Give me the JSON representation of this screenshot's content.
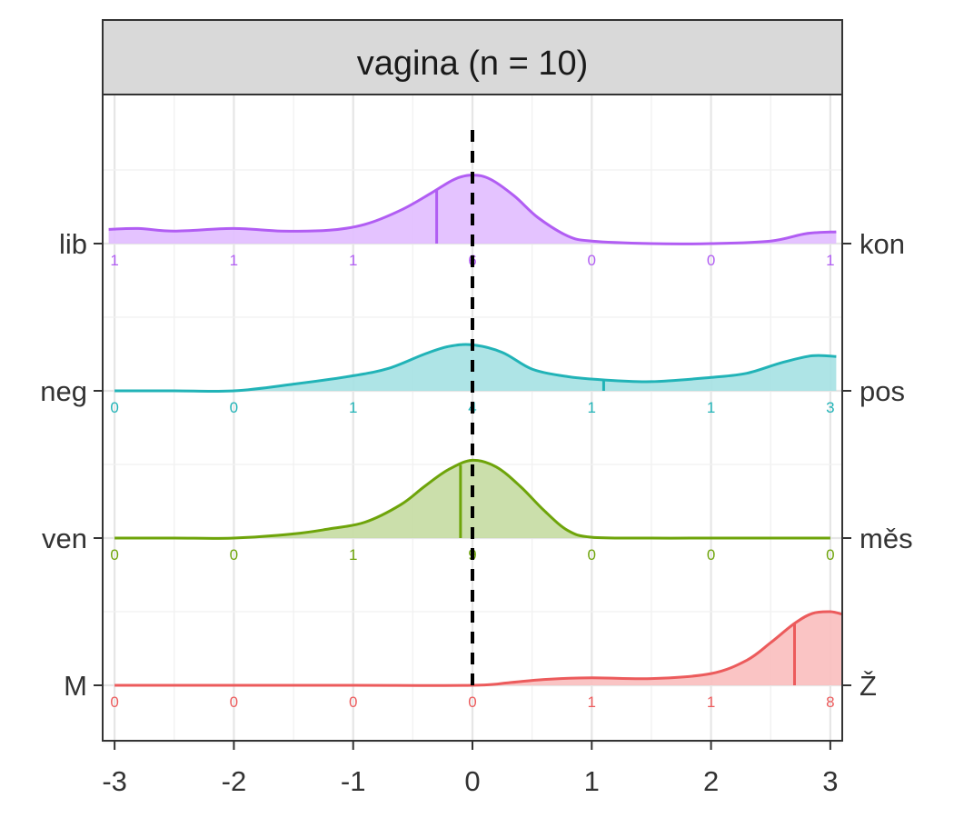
{
  "chart_data": {
    "type": "ridgeline",
    "title": "vagina (n = 10)",
    "x_ticks": [
      "-3",
      "-2",
      "-1",
      "0",
      "1",
      "2",
      "3"
    ],
    "xlim": [
      -3.1,
      3.1
    ],
    "reference_line_x": 0,
    "grid": true,
    "rows": [
      {
        "left_label": "lib",
        "right_label": "kon",
        "color": "#B15DF3",
        "fill": "#E1BCFF",
        "mean": -0.3,
        "counts": [
          1,
          1,
          1,
          6,
          0,
          0,
          1
        ],
        "count_labels": [
          "1",
          "1",
          "1",
          "6",
          "0",
          "0",
          "1"
        ],
        "density": [
          [
            -3.05,
            0.17
          ],
          [
            -2.8,
            0.18
          ],
          [
            -2.5,
            0.15
          ],
          [
            -2.0,
            0.18
          ],
          [
            -1.6,
            0.15
          ],
          [
            -1.2,
            0.16
          ],
          [
            -0.9,
            0.23
          ],
          [
            -0.6,
            0.4
          ],
          [
            -0.35,
            0.6
          ],
          [
            -0.15,
            0.77
          ],
          [
            0.0,
            0.82
          ],
          [
            0.15,
            0.77
          ],
          [
            0.35,
            0.57
          ],
          [
            0.55,
            0.31
          ],
          [
            0.8,
            0.09
          ],
          [
            1.0,
            0.03
          ],
          [
            1.5,
            0.0
          ],
          [
            2.0,
            0.0
          ],
          [
            2.5,
            0.03
          ],
          [
            2.8,
            0.12
          ],
          [
            3.05,
            0.14
          ]
        ]
      },
      {
        "left_label": "neg",
        "right_label": "pos",
        "color": "#21B3B7",
        "fill": "#A5E1E3",
        "mean": 1.1,
        "counts": [
          0,
          0,
          1,
          4,
          1,
          1,
          3
        ],
        "count_labels": [
          "0",
          "0",
          "1",
          "4",
          "1",
          "1",
          "3"
        ],
        "density": [
          [
            -3.0,
            0.0
          ],
          [
            -2.5,
            0.0
          ],
          [
            -2.0,
            0.0
          ],
          [
            -1.5,
            0.08
          ],
          [
            -1.0,
            0.18
          ],
          [
            -0.7,
            0.27
          ],
          [
            -0.4,
            0.44
          ],
          [
            -0.2,
            0.53
          ],
          [
            0.0,
            0.55
          ],
          [
            0.25,
            0.46
          ],
          [
            0.5,
            0.26
          ],
          [
            0.8,
            0.17
          ],
          [
            1.1,
            0.13
          ],
          [
            1.5,
            0.11
          ],
          [
            2.0,
            0.16
          ],
          [
            2.3,
            0.21
          ],
          [
            2.6,
            0.34
          ],
          [
            2.85,
            0.42
          ],
          [
            3.05,
            0.41
          ]
        ]
      },
      {
        "left_label": "ven",
        "right_label": "měs",
        "color": "#6EA40A",
        "fill": "#C5DCA2",
        "mean": -0.1,
        "counts": [
          0,
          0,
          1,
          9,
          0,
          0,
          0
        ],
        "count_labels": [
          "0",
          "0",
          "1",
          "9",
          "0",
          "0",
          "0"
        ],
        "density": [
          [
            -3.0,
            0.0
          ],
          [
            -2.5,
            0.0
          ],
          [
            -2.0,
            0.0
          ],
          [
            -1.5,
            0.05
          ],
          [
            -1.2,
            0.11
          ],
          [
            -0.9,
            0.19
          ],
          [
            -0.6,
            0.4
          ],
          [
            -0.4,
            0.62
          ],
          [
            -0.2,
            0.82
          ],
          [
            0.0,
            0.93
          ],
          [
            0.2,
            0.85
          ],
          [
            0.4,
            0.62
          ],
          [
            0.6,
            0.33
          ],
          [
            0.8,
            0.09
          ],
          [
            1.0,
            0.01
          ],
          [
            1.5,
            0.0
          ],
          [
            2.0,
            0.0
          ],
          [
            2.5,
            0.0
          ],
          [
            3.0,
            0.0
          ]
        ]
      },
      {
        "left_label": "M",
        "right_label": "Ž",
        "color": "#EC5B5C",
        "fill": "#F9BEBE",
        "mean": 2.7,
        "counts": [
          0,
          0,
          0,
          0,
          1,
          1,
          8
        ],
        "count_labels": [
          "0",
          "0",
          "0",
          "0",
          "1",
          "1",
          "8"
        ],
        "density": [
          [
            -3.0,
            0.0
          ],
          [
            -2.0,
            0.0
          ],
          [
            -1.0,
            0.0
          ],
          [
            0.0,
            0.0
          ],
          [
            0.3,
            0.03
          ],
          [
            0.6,
            0.07
          ],
          [
            1.0,
            0.09
          ],
          [
            1.5,
            0.08
          ],
          [
            2.0,
            0.14
          ],
          [
            2.3,
            0.3
          ],
          [
            2.5,
            0.51
          ],
          [
            2.7,
            0.74
          ],
          [
            2.85,
            0.86
          ],
          [
            3.0,
            0.88
          ],
          [
            3.1,
            0.85
          ]
        ]
      }
    ]
  }
}
